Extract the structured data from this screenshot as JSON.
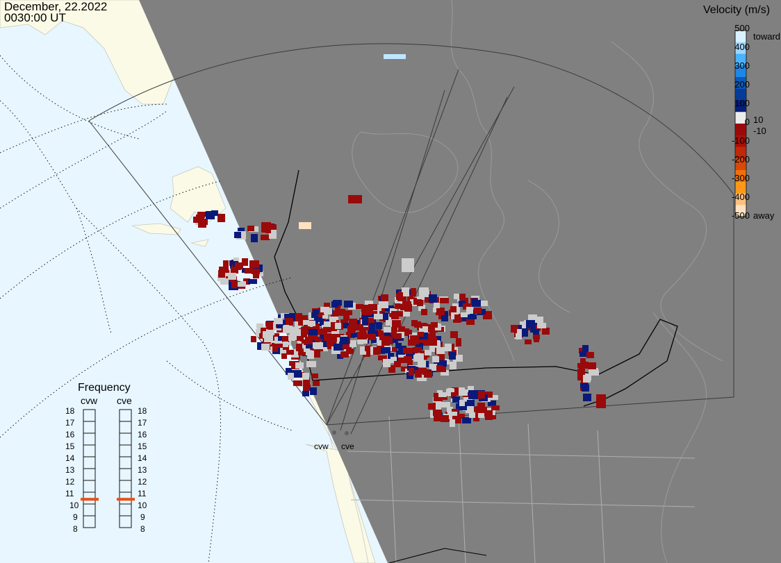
{
  "header": {
    "date": "December, 22.2022",
    "time": "0030:00 UT"
  },
  "legend": {
    "title": "Velocity (m/s)",
    "ticks_left": [
      "500",
      "400",
      "300",
      "200",
      "100",
      "0",
      "-100",
      "-200",
      "-300",
      "-400",
      "-500"
    ],
    "ticks_right": {
      "toward": "toward",
      "pos": "10",
      "neg": "-10",
      "away": "away"
    },
    "colors": [
      "#d8f0ff",
      "#9fd6ff",
      "#4ab2ff",
      "#1e86e8",
      "#0a5ab8",
      "#063c98",
      "#041e7a",
      "#ececec",
      "#9a0a0a",
      "#a81008",
      "#c02808",
      "#d84808",
      "#f07008",
      "#ff9818",
      "#ffc080",
      "#ffe0c0"
    ]
  },
  "frequency": {
    "title": "Frequency",
    "radars": [
      "cvw",
      "cve"
    ],
    "scale": [
      "18",
      "17",
      "16",
      "15",
      "14",
      "13",
      "12",
      "11",
      "10",
      "9",
      "8"
    ],
    "selected_mhz": {
      "cvw": 10.9,
      "cve": 10.9
    },
    "marker_color": "#e8501a"
  },
  "sites": {
    "west": "cvw",
    "east": "cve"
  },
  "colors": {
    "land": "#fafae6",
    "ocean": "#e8f6ff",
    "night": "#808080",
    "coast": "#c4c4c4",
    "low_velocity": "#cccccc",
    "away": "#9a0a0a",
    "toward": "#0a1a7a"
  }
}
